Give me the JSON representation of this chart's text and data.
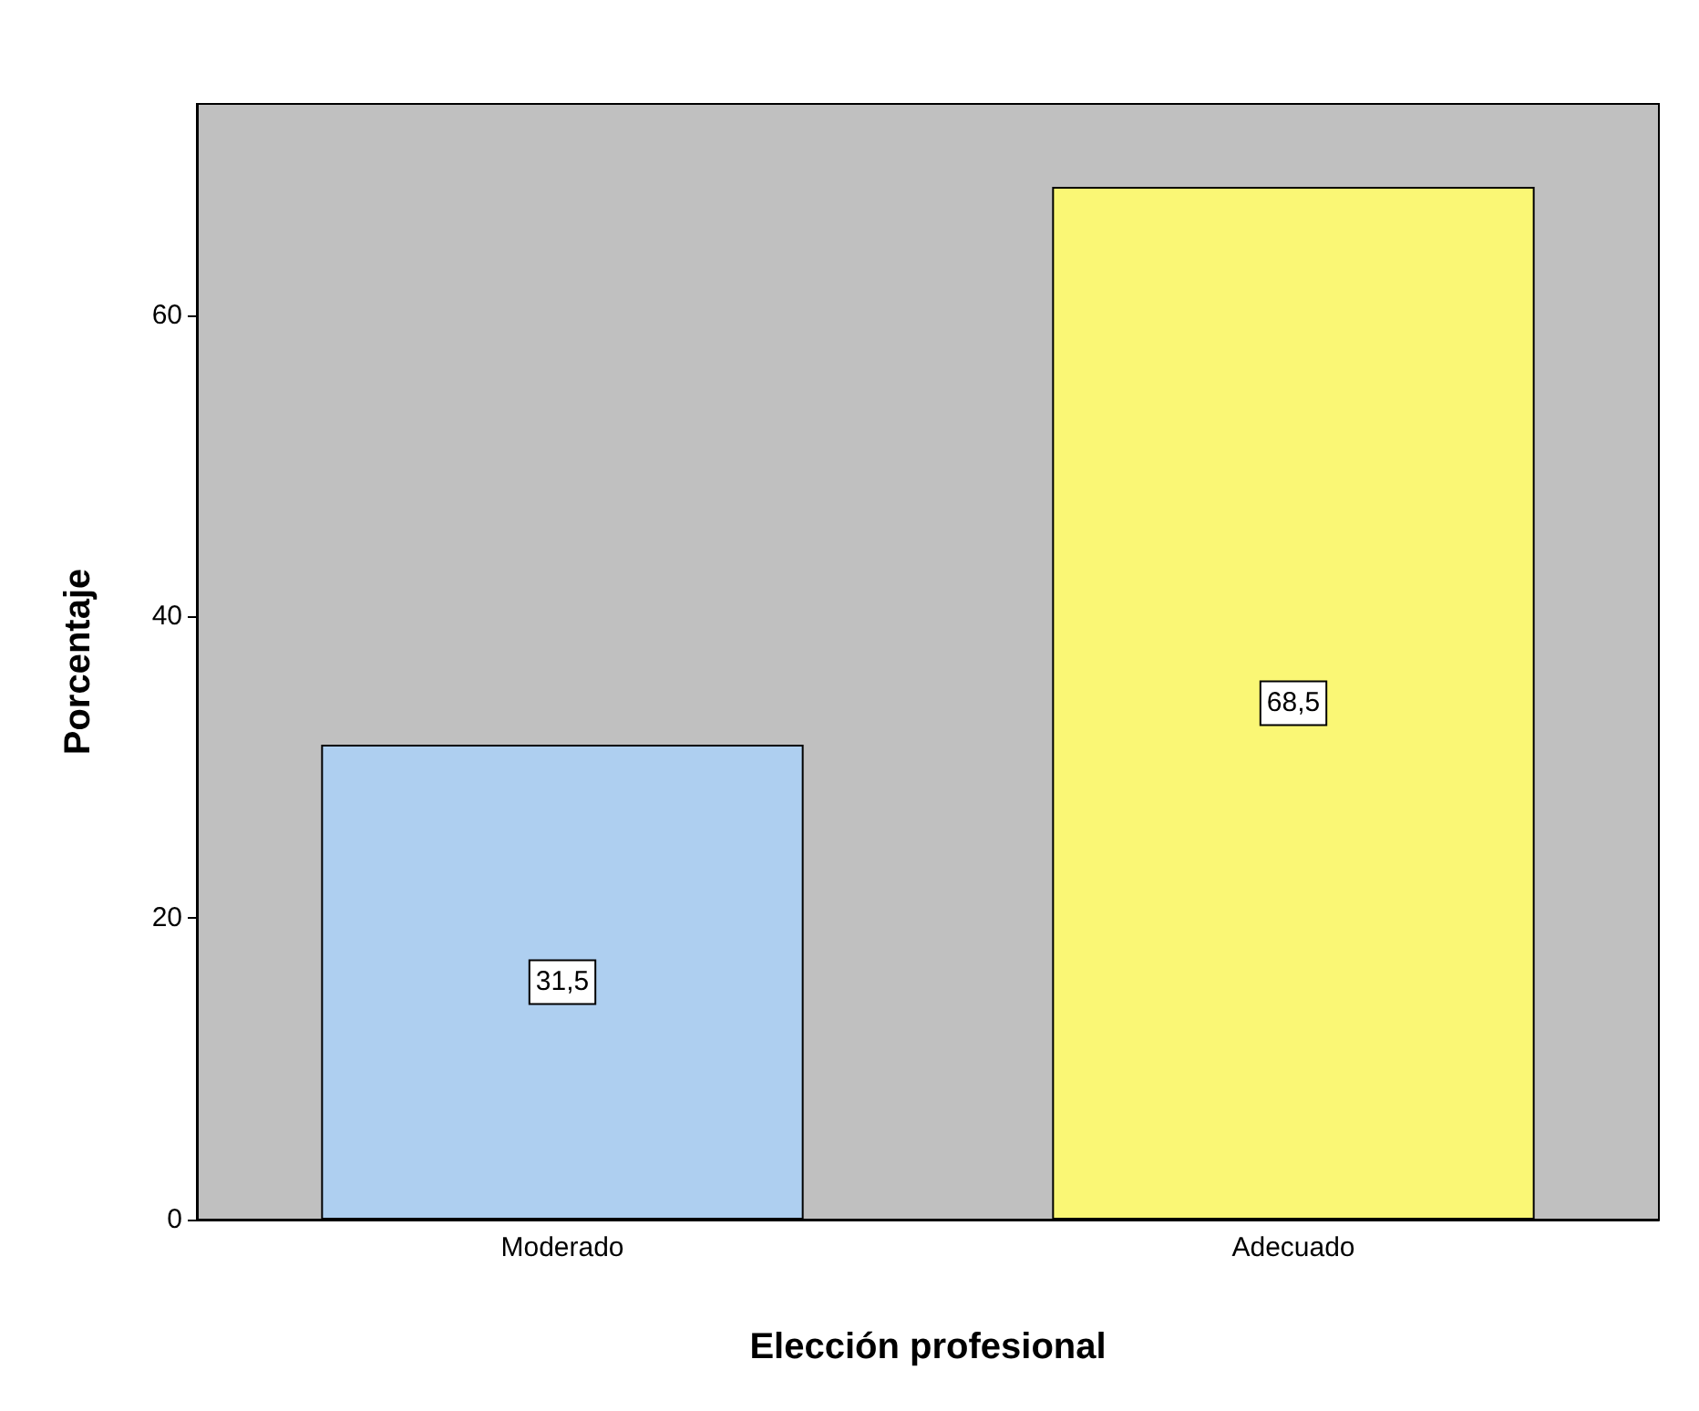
{
  "chart_data": {
    "type": "bar",
    "xlabel": "Elección profesional",
    "ylabel": "Porcentaje",
    "categories": [
      "Moderado",
      "Adecuado"
    ],
    "values": [
      31.5,
      68.5
    ],
    "colors": [
      "#aecff0",
      "#faf775"
    ],
    "value_labels": [
      "31,5",
      "68,5"
    ],
    "ylim": [
      0,
      74
    ],
    "yticks": [
      0,
      20,
      40,
      60
    ],
    "grid": false
  }
}
